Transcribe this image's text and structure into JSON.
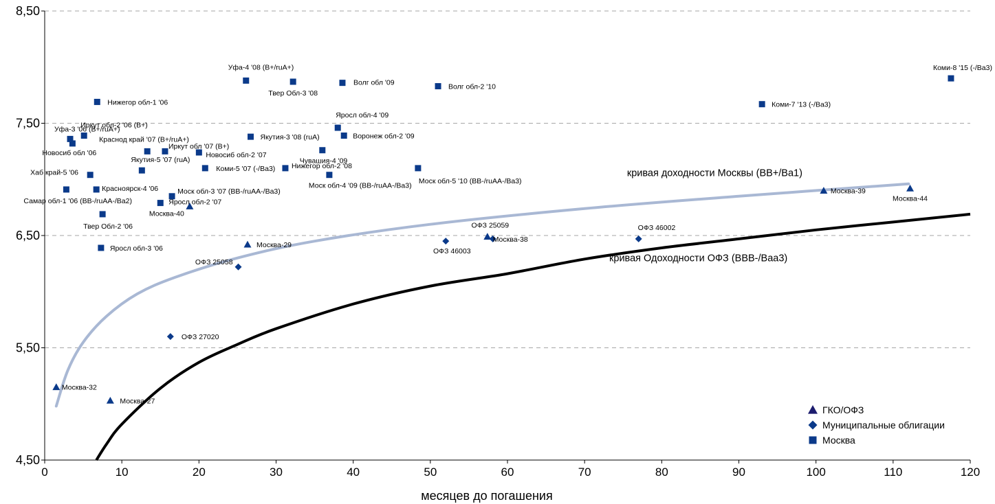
{
  "chart_data": {
    "type": "scatter",
    "title": "",
    "xlabel": "месяцев до погашения",
    "ylabel": "",
    "xlim": [
      0,
      120
    ],
    "ylim": [
      4.5,
      8.5
    ],
    "x_ticks": [
      0,
      10,
      20,
      30,
      40,
      50,
      60,
      70,
      80,
      90,
      100,
      110,
      120
    ],
    "y_ticks": [
      {
        "value": 4.5,
        "label": "4,50"
      },
      {
        "value": 5.5,
        "label": "5,50"
      },
      {
        "value": 6.5,
        "label": "6,50"
      },
      {
        "value": 7.5,
        "label": "7,50"
      },
      {
        "value": 8.5,
        "label": "8,50"
      }
    ],
    "grid": {
      "horizontal": true,
      "style": "dashed"
    },
    "legend_position": "bottom-right",
    "colors": {
      "marker": "#0b3a8a",
      "moscow_curve": "#a9b8d4",
      "ofz_curve": "#000000",
      "grid": "#a6a6a6"
    },
    "series": [
      {
        "name": "ГКО/ОФЗ",
        "marker": "triangle",
        "points": [
          {
            "x": 1.5,
            "y": 5.15,
            "label": "Москва-32"
          },
          {
            "x": 8.5,
            "y": 5.03,
            "label": "Москва-27"
          },
          {
            "x": 26.3,
            "y": 6.42,
            "label": "Москва-29"
          },
          {
            "x": 18.8,
            "y": 6.76,
            "label": "Москва-40"
          },
          {
            "x": 57.4,
            "y": 6.49,
            "label": "ОФЗ 25059"
          },
          {
            "x": 101,
            "y": 6.9,
            "label": "Москва-39"
          },
          {
            "x": 112.2,
            "y": 6.92,
            "label": "Москва-44"
          }
        ]
      },
      {
        "name": "Муниципальные облигации",
        "marker": "diamond",
        "points": [
          {
            "x": 16.3,
            "y": 5.6,
            "label": "ОФЗ 27020"
          },
          {
            "x": 25.1,
            "y": 6.22,
            "label": "ОФЗ 25058"
          },
          {
            "x": 52.0,
            "y": 6.45,
            "label": "ОФЗ 46003"
          },
          {
            "x": 58.1,
            "y": 6.47,
            "label": "Москва-38"
          },
          {
            "x": 77.0,
            "y": 6.47,
            "label": "ОФЗ 46002"
          }
        ]
      },
      {
        "name": "Москва",
        "marker": "square",
        "points": [
          {
            "x": 6.8,
            "y": 7.69,
            "label": "Нижегор обл-1 '06"
          },
          {
            "x": 3.3,
            "y": 7.36,
            "label": "Уфа-3 '06 (B+/ruA+)"
          },
          {
            "x": 5.1,
            "y": 7.39,
            "label": "Иркут обл-2 '06 (B+)"
          },
          {
            "x": 3.6,
            "y": 7.32,
            "label": "Новосиб обл '06"
          },
          {
            "x": 13.3,
            "y": 7.25,
            "label": "Краснод край '07 (B+/ruA+)"
          },
          {
            "x": 15.6,
            "y": 7.25,
            "label": "Иркут обл '07 (B+)"
          },
          {
            "x": 20.0,
            "y": 7.24,
            "label": "Новосиб обл-2 '07"
          },
          {
            "x": 12.6,
            "y": 7.08,
            "label": "Якутия-5 '07 (ruA)"
          },
          {
            "x": 20.8,
            "y": 7.1,
            "label": "Коми-5 '07 (-/Ba3)"
          },
          {
            "x": 26.7,
            "y": 7.38,
            "label": "Якутия-3 '08 (ruA)"
          },
          {
            "x": 26.1,
            "y": 7.88,
            "label": "Уфа-4 '08 (B+/ruA+)"
          },
          {
            "x": 32.2,
            "y": 7.87,
            "label": "Твер Обл-3 '08"
          },
          {
            "x": 38.6,
            "y": 7.86,
            "label": "Волг обл '09"
          },
          {
            "x": 51.0,
            "y": 7.83,
            "label": "Волг обл-2 '10"
          },
          {
            "x": 38.0,
            "y": 7.46,
            "label": "Яросл обл-4 '09"
          },
          {
            "x": 38.8,
            "y": 7.39,
            "label": "Воронеж обл-2 '09"
          },
          {
            "x": 36.0,
            "y": 7.26,
            "label": "Чувашия-4 '09"
          },
          {
            "x": 31.2,
            "y": 7.1,
            "label": "Нижегор обл-2 '08"
          },
          {
            "x": 36.9,
            "y": 7.04,
            "label": "Моск обл-4 '09 (BB-/ruAA-/Ba3)"
          },
          {
            "x": 48.4,
            "y": 7.1,
            "label": "Моск обл-5 '10 (BB-/ruAA-/Ba3)"
          },
          {
            "x": 5.9,
            "y": 7.04,
            "label": "Хаб край-5 '06"
          },
          {
            "x": 2.8,
            "y": 6.91,
            "label": "Самар обл-1 '06 (BB-/ruAA-/Ba2)"
          },
          {
            "x": 6.7,
            "y": 6.91,
            "label": "Красноярск-4 '06"
          },
          {
            "x": 16.5,
            "y": 6.85,
            "label": "Моск обл-3 '07 (BB-/ruAA-/Ba3)"
          },
          {
            "x": 15.0,
            "y": 6.79,
            "label": "Яросл обл-2 '07"
          },
          {
            "x": 7.5,
            "y": 6.69,
            "label": "Твер Обл-2 '06"
          },
          {
            "x": 7.3,
            "y": 6.39,
            "label": "Яросл обл-3 '06"
          },
          {
            "x": 93.0,
            "y": 7.67,
            "label": "Коми-7 '13 (-/Ba3)"
          },
          {
            "x": 117.5,
            "y": 7.9,
            "label": "Коми-8 '15 (-/Ba3)"
          }
        ]
      }
    ],
    "curves": [
      {
        "name": "кривая доходности Москвы (BB+/Ba1)",
        "points": [
          [
            1.5,
            4.98
          ],
          [
            3,
            5.3
          ],
          [
            5,
            5.55
          ],
          [
            8,
            5.78
          ],
          [
            12,
            5.98
          ],
          [
            17,
            6.13
          ],
          [
            25,
            6.3
          ],
          [
            35,
            6.45
          ],
          [
            50,
            6.6
          ],
          [
            70,
            6.74
          ],
          [
            90,
            6.85
          ],
          [
            112,
            6.96
          ]
        ]
      },
      {
        "name": "кривая Одоходности ОФЗ (BBB-/Baa3)",
        "points": [
          [
            6.7,
            4.5
          ],
          [
            8,
            4.64
          ],
          [
            10,
            4.82
          ],
          [
            15,
            5.14
          ],
          [
            20,
            5.37
          ],
          [
            25,
            5.53
          ],
          [
            30,
            5.67
          ],
          [
            40,
            5.89
          ],
          [
            50,
            6.05
          ],
          [
            60,
            6.16
          ],
          [
            70,
            6.29
          ],
          [
            80,
            6.39
          ],
          [
            90,
            6.47
          ],
          [
            100,
            6.55
          ],
          [
            110,
            6.62
          ],
          [
            120,
            6.69
          ]
        ]
      }
    ]
  }
}
